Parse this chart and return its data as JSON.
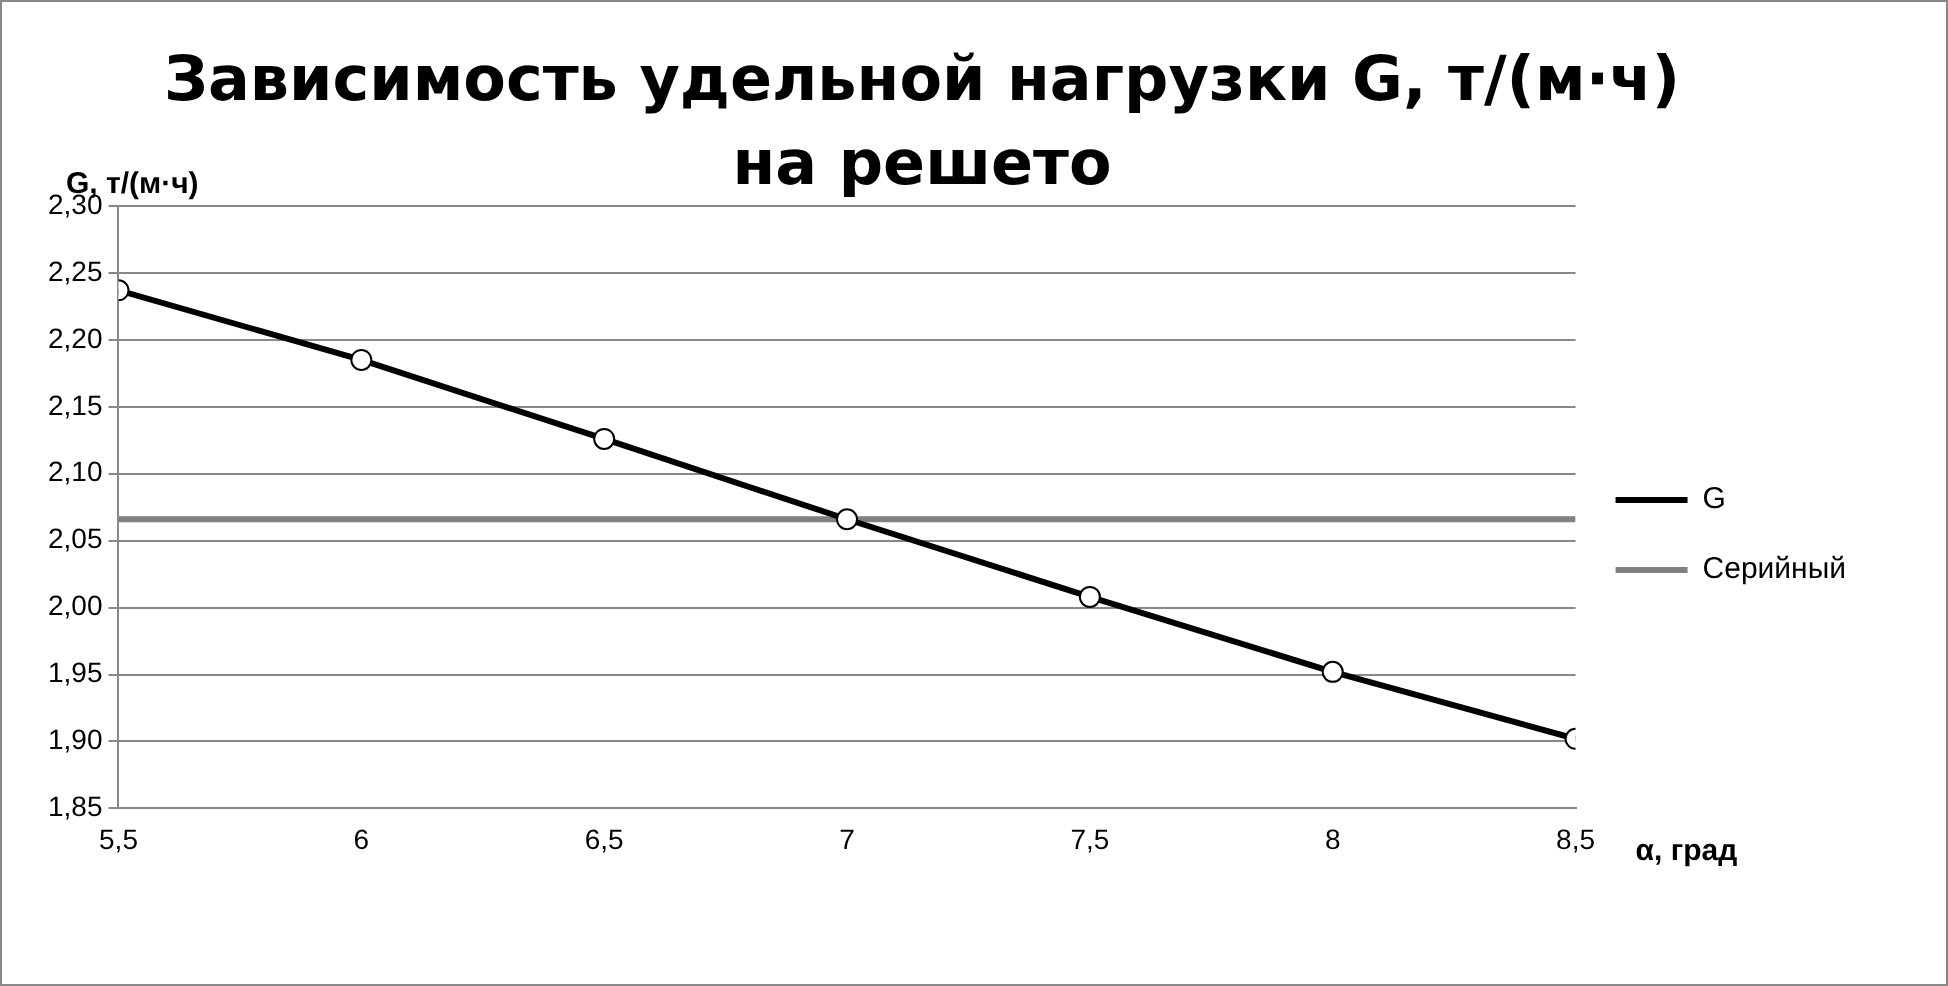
{
  "chart_data": {
    "type": "line",
    "title": "Зависимость удельной нагрузки G, т/(м·ч) на решето",
    "xlabel": "α, град",
    "ylabel": "G, т/(м·ч)",
    "x": [
      5.5,
      6,
      6.5,
      7,
      7.5,
      8,
      8.5
    ],
    "series": [
      {
        "name": "G",
        "color": "#000000",
        "values": [
          2.237,
          2.185,
          2.126,
          2.066,
          2.008,
          1.952,
          1.902
        ],
        "marker": "circle"
      },
      {
        "name": "Серийный",
        "color": "#808080",
        "x": [
          5.5,
          8.5
        ],
        "values": [
          2.066,
          2.066
        ],
        "marker": "none"
      }
    ],
    "xlim": [
      5.5,
      8.5
    ],
    "xticks": [
      {
        "value": 5.5,
        "label": "5,5"
      },
      6,
      {
        "value": 6.5,
        "label": "6,5"
      },
      7,
      {
        "value": 7.5,
        "label": "7,5"
      },
      8,
      {
        "value": 8.5,
        "label": "8,5"
      }
    ],
    "ylim": [
      1.85,
      2.3
    ],
    "yticks": [
      {
        "value": 1.85,
        "label": "1,85"
      },
      {
        "value": 1.9,
        "label": "1,90"
      },
      {
        "value": 1.95,
        "label": "1,95"
      },
      {
        "value": 2,
        "label": "2,00"
      },
      {
        "value": 2.05,
        "label": "2,05"
      },
      {
        "value": 2.1,
        "label": "2,10"
      },
      {
        "value": 2.15,
        "label": "2,15"
      },
      {
        "value": 2.2,
        "label": "2,20"
      },
      {
        "value": 2.25,
        "label": "2,25"
      },
      {
        "value": 2.3,
        "label": "2,30"
      }
    ],
    "grid": "y",
    "legend": "right",
    "line_style": "solid"
  }
}
